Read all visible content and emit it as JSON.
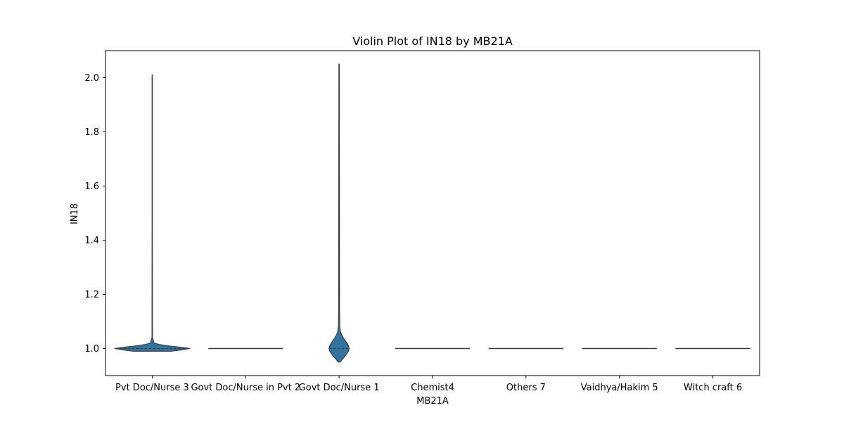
{
  "chart_data": {
    "type": "violin",
    "title": "Violin Plot of IN18 by MB21A",
    "xlabel": "MB21A",
    "ylabel": "IN18",
    "ylim": [
      0.9,
      2.1
    ],
    "yticks": [
      1.0,
      1.2,
      1.4,
      1.6,
      1.8,
      2.0
    ],
    "ytick_labels": [
      "1.0",
      "1.2",
      "1.4",
      "1.6",
      "1.8",
      "2.0"
    ],
    "categories": [
      "Pvt Doc/Nurse 3",
      "Govt Doc/Nurse in Pvt 2",
      "Govt Doc/Nurse 1",
      "Chemist4",
      "Others 7",
      "Vaidhya/Hakim 5",
      "Witch craft 6"
    ],
    "violins": [
      {
        "category": "Pvt Doc/Nurse 3",
        "min": 0.99,
        "max": 2.01,
        "median": 1.0,
        "density": [
          [
            0.99,
            0.5
          ],
          [
            0.995,
            0.8
          ],
          [
            1.0,
            1.0
          ],
          [
            1.005,
            0.75
          ],
          [
            1.01,
            0.4
          ],
          [
            1.015,
            0.18
          ],
          [
            1.02,
            0.05
          ],
          [
            1.04,
            0.006
          ],
          [
            1.5,
            0.004
          ],
          [
            2.01,
            0.004
          ]
        ]
      },
      {
        "category": "Govt Doc/Nurse in Pvt 2",
        "min": 1.0,
        "max": 1.0,
        "median": 1.0,
        "density": []
      },
      {
        "category": "Govt Doc/Nurse 1",
        "min": 0.95,
        "max": 2.05,
        "median": 1.0,
        "density": [
          [
            0.95,
            0.03
          ],
          [
            0.96,
            0.08
          ],
          [
            0.97,
            0.15
          ],
          [
            0.98,
            0.2
          ],
          [
            0.99,
            0.25
          ],
          [
            1.0,
            0.27
          ],
          [
            1.01,
            0.25
          ],
          [
            1.02,
            0.21
          ],
          [
            1.03,
            0.16
          ],
          [
            1.04,
            0.11
          ],
          [
            1.05,
            0.07
          ],
          [
            1.06,
            0.04
          ],
          [
            1.08,
            0.018
          ],
          [
            1.15,
            0.012
          ],
          [
            1.5,
            0.01
          ],
          [
            2.05,
            0.006
          ]
        ]
      },
      {
        "category": "Chemist4",
        "min": 1.0,
        "max": 1.0,
        "median": 1.0,
        "density": []
      },
      {
        "category": "Others 7",
        "min": 1.0,
        "max": 1.0,
        "median": 1.0,
        "density": []
      },
      {
        "category": "Vaidhya/Hakim 5",
        "min": 1.0,
        "max": 1.0,
        "median": 1.0,
        "density": []
      },
      {
        "category": "Witch craft 6",
        "min": 1.0,
        "max": 1.0,
        "median": 1.0,
        "density": []
      }
    ],
    "colors": {
      "fill": "#3274a1",
      "edge": "#3c3c3c",
      "axis": "#000000"
    }
  }
}
